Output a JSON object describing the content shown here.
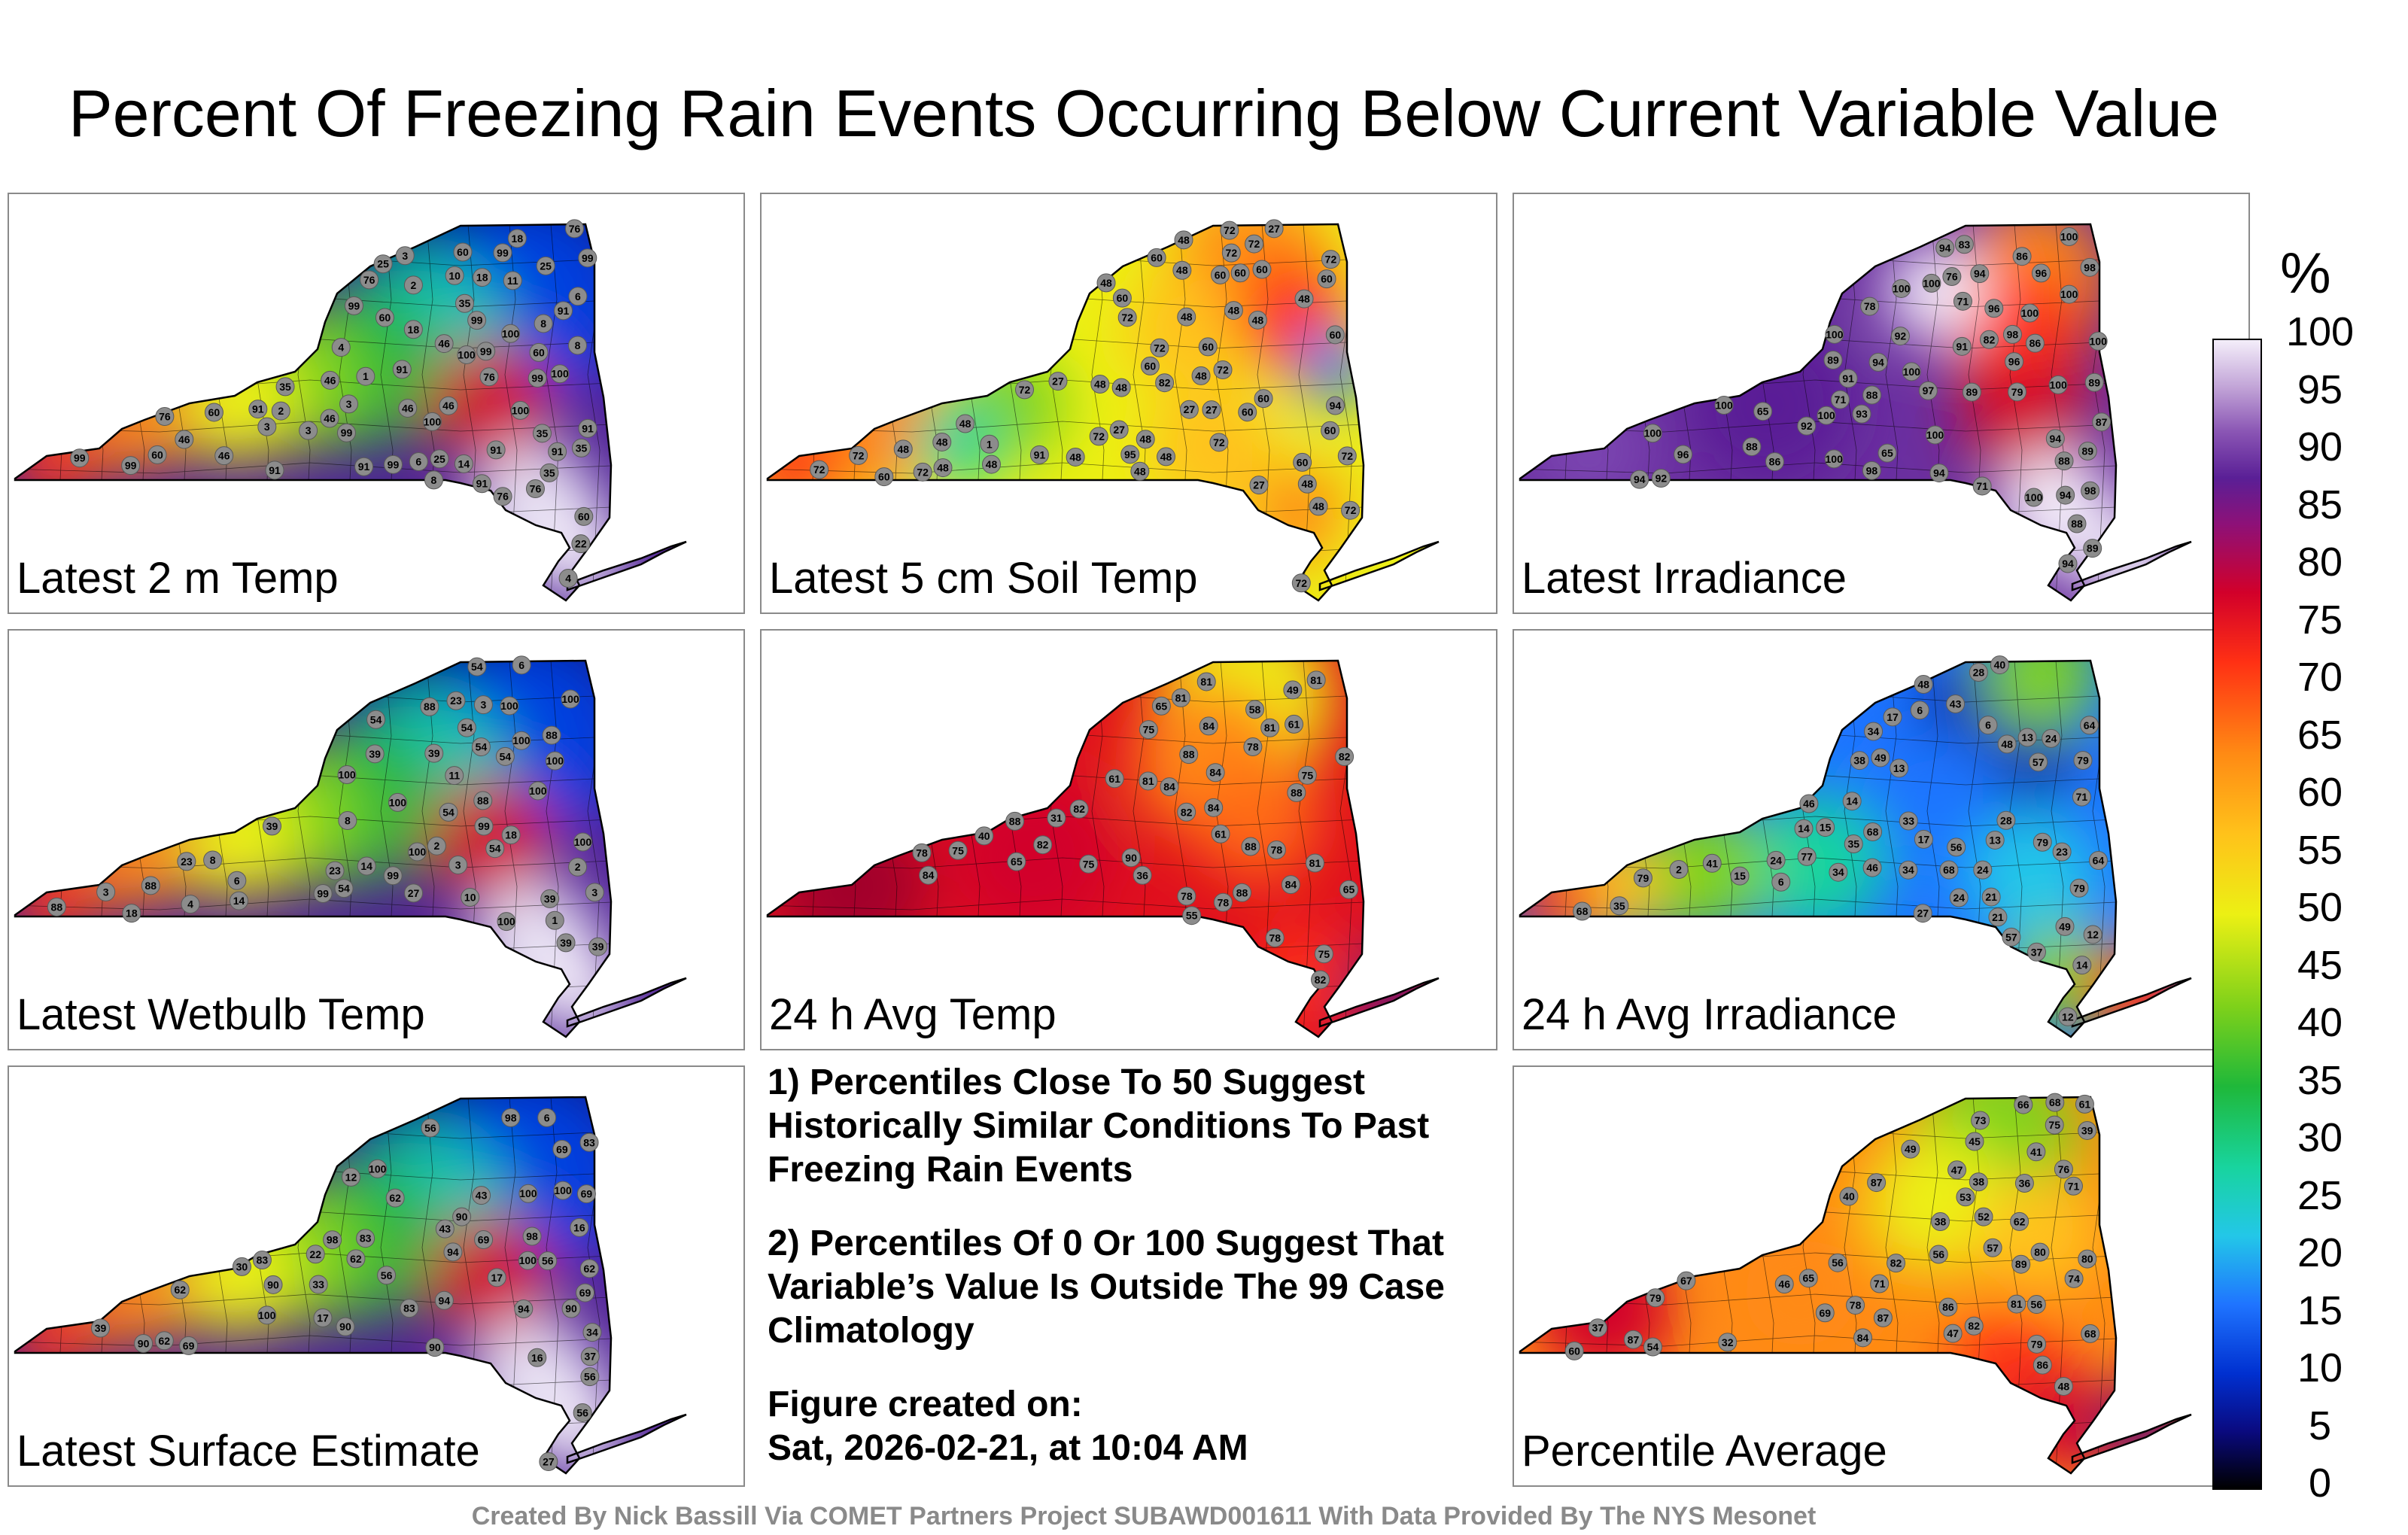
{
  "header": {
    "title": "Percent Of Freezing Rain Events Occurring Below Current Variable Value"
  },
  "panels": [
    {
      "id": "temp2m",
      "label": "Latest 2 m Temp",
      "scheme": "cold-north",
      "station_values": [
        "3",
        "2",
        "1",
        "3",
        "2",
        "3",
        "4",
        "6",
        "3",
        "18",
        "4",
        "14",
        "6",
        "8",
        "35",
        "10",
        "8",
        "8",
        "11",
        "18",
        "25",
        "46",
        "46",
        "35",
        "99",
        "91",
        "91",
        "76",
        "99",
        "35",
        "25",
        "18",
        "46",
        "60",
        "76",
        "91",
        "91",
        "46",
        "35",
        "99",
        "76",
        "46",
        "60",
        "91",
        "76",
        "99",
        "91",
        "25",
        "91",
        "22",
        "76",
        "99",
        "60",
        "46",
        "60",
        "91",
        "46",
        "60",
        "99",
        "76",
        "35",
        "60",
        "91",
        "99",
        "99",
        "100",
        "99",
        "99",
        "100",
        "100",
        "100",
        "100"
      ]
    },
    {
      "id": "soil5cm",
      "label": "Latest 5 cm Soil Temp",
      "scheme": "soil",
      "station_values": [
        "60",
        "72",
        "60",
        "72",
        "27",
        "72",
        "72",
        "60",
        "95",
        "48",
        "72",
        "72",
        "82",
        "91",
        "72",
        "60",
        "72",
        "48",
        "27",
        "72",
        "48",
        "60",
        "72",
        "48",
        "60",
        "48",
        "72",
        "27",
        "48",
        "60",
        "48",
        "1",
        "72",
        "60",
        "48",
        "27",
        "48",
        "72",
        "60",
        "48",
        "27",
        "60",
        "72",
        "48",
        "27",
        "60",
        "48",
        "72",
        "48",
        "48",
        "72",
        "48",
        "60",
        "60",
        "48",
        "94",
        "48",
        "48",
        "48",
        "60",
        "48",
        "48"
      ]
    },
    {
      "id": "irradiance",
      "label": "Latest Irradiance",
      "scheme": "irradiance",
      "station_values": [
        "100",
        "98",
        "100",
        "78",
        "100",
        "89",
        "71",
        "98",
        "94",
        "100",
        "65",
        "96",
        "71",
        "83",
        "79",
        "96",
        "100",
        "89",
        "92",
        "88",
        "88",
        "94",
        "82",
        "89",
        "71",
        "100",
        "86",
        "65",
        "91",
        "94",
        "93",
        "88",
        "94",
        "91",
        "86",
        "96",
        "89",
        "76",
        "98",
        "92",
        "94",
        "86",
        "87",
        "97",
        "94",
        "92",
        "100",
        "89",
        "98",
        "100",
        "100",
        "88",
        "94",
        "94",
        "100",
        "100",
        "96",
        "100",
        "100",
        "100",
        "100"
      ]
    },
    {
      "id": "wetbulb",
      "label": "Latest Wetbulb Temp",
      "scheme": "cold-north",
      "station_values": [
        "3",
        "2",
        "1",
        "3",
        "2",
        "3",
        "4",
        "6",
        "3",
        "18",
        "14",
        "6",
        "8",
        "54",
        "39",
        "10",
        "8",
        "14",
        "11",
        "18",
        "39",
        "54",
        "100",
        "100",
        "27",
        "23",
        "39",
        "54",
        "88",
        "54",
        "99",
        "23",
        "39",
        "39",
        "88",
        "54",
        "39",
        "100",
        "23",
        "88",
        "54",
        "99",
        "88",
        "54",
        "100",
        "54",
        "88",
        "99",
        "100",
        "100",
        "100",
        "100",
        "100",
        "100"
      ]
    },
    {
      "id": "avg24temp",
      "label": "24 h Avg Temp",
      "scheme": "warm",
      "station_values": [
        "31",
        "40",
        "36",
        "49",
        "55",
        "65",
        "58",
        "61",
        "75",
        "61",
        "84",
        "81",
        "84",
        "88",
        "88",
        "82",
        "81",
        "78",
        "75",
        "61",
        "65",
        "84",
        "81",
        "84",
        "65",
        "78",
        "81",
        "75",
        "82",
        "78",
        "75",
        "88",
        "84",
        "82",
        "78",
        "81",
        "78",
        "75",
        "88",
        "82",
        "81",
        "78",
        "88",
        "90",
        "84",
        "82"
      ]
    },
    {
      "id": "avg24irr",
      "label": "24 h Avg Irradiance",
      "scheme": "cool-center",
      "station_values": [
        "48",
        "79",
        "79",
        "57",
        "38",
        "15",
        "34",
        "46",
        "6",
        "2",
        "12",
        "23",
        "6",
        "33",
        "13",
        "49",
        "64",
        "57",
        "28",
        "21",
        "6",
        "14",
        "17",
        "71",
        "79",
        "68",
        "14",
        "13",
        "12",
        "17",
        "64",
        "41",
        "24",
        "24",
        "34",
        "14",
        "13",
        "15",
        "79",
        "68",
        "49",
        "24",
        "24",
        "34",
        "28",
        "21",
        "37",
        "27",
        "43",
        "35",
        "46",
        "40",
        "56",
        "68",
        "77",
        "35",
        "48"
      ]
    },
    {
      "id": "surface",
      "label": "Latest Surface Estimate",
      "scheme": "cold-north",
      "station_values": [
        "16",
        "6",
        "12",
        "17",
        "22",
        "16",
        "34",
        "37",
        "17",
        "27",
        "33",
        "30",
        "56",
        "43",
        "62",
        "39",
        "56",
        "90",
        "94",
        "83",
        "62",
        "69",
        "56",
        "90",
        "69",
        "98",
        "69",
        "83",
        "62",
        "90",
        "56",
        "62",
        "43",
        "94",
        "98",
        "83",
        "90",
        "69",
        "56",
        "62",
        "69",
        "90",
        "83",
        "94",
        "98",
        "90",
        "100",
        "100",
        "100",
        "100",
        "100"
      ]
    },
    {
      "id": "average",
      "label": "Percentile Average",
      "scheme": "average",
      "station_values": [
        "37",
        "40",
        "41",
        "32",
        "38",
        "36",
        "46",
        "39",
        "45",
        "52",
        "54",
        "48",
        "49",
        "47",
        "38",
        "53",
        "66",
        "84",
        "86",
        "80",
        "56",
        "56",
        "67",
        "76",
        "71",
        "68",
        "61",
        "86",
        "82",
        "62",
        "65",
        "57",
        "60",
        "56",
        "71",
        "78",
        "80",
        "47",
        "73",
        "79",
        "74",
        "68",
        "75",
        "69",
        "79",
        "81",
        "89",
        "82",
        "87",
        "87",
        "87"
      ]
    }
  ],
  "notes": {
    "line1": "1) Percentiles Close To 50 Suggest Historically Similar Conditions To Past Freezing Rain Events",
    "line2": "2) Percentiles Of 0 Or 100 Suggest That Variable’s Value Is Outside The 99 Case Climatology",
    "created_label": "Figure created on:",
    "created_date": "Sat, 2026-02-21, at 10:04 AM"
  },
  "colorbar": {
    "unit": "%",
    "ticks": [
      "100",
      "95",
      "90",
      "85",
      "80",
      "75",
      "70",
      "65",
      "60",
      "55",
      "50",
      "45",
      "40",
      "35",
      "30",
      "25",
      "20",
      "15",
      "10",
      "5",
      "0"
    ]
  },
  "footer": {
    "credits": "Created By Nick Bassill Via COMET Partners Project SUBAWD001611 With Data Provided By The NYS Mesonet"
  },
  "colors": {
    "outline": "#000000",
    "station": "#8c8c8c",
    "border": "#8a8a8a",
    "credits": "#8a8a8a"
  }
}
